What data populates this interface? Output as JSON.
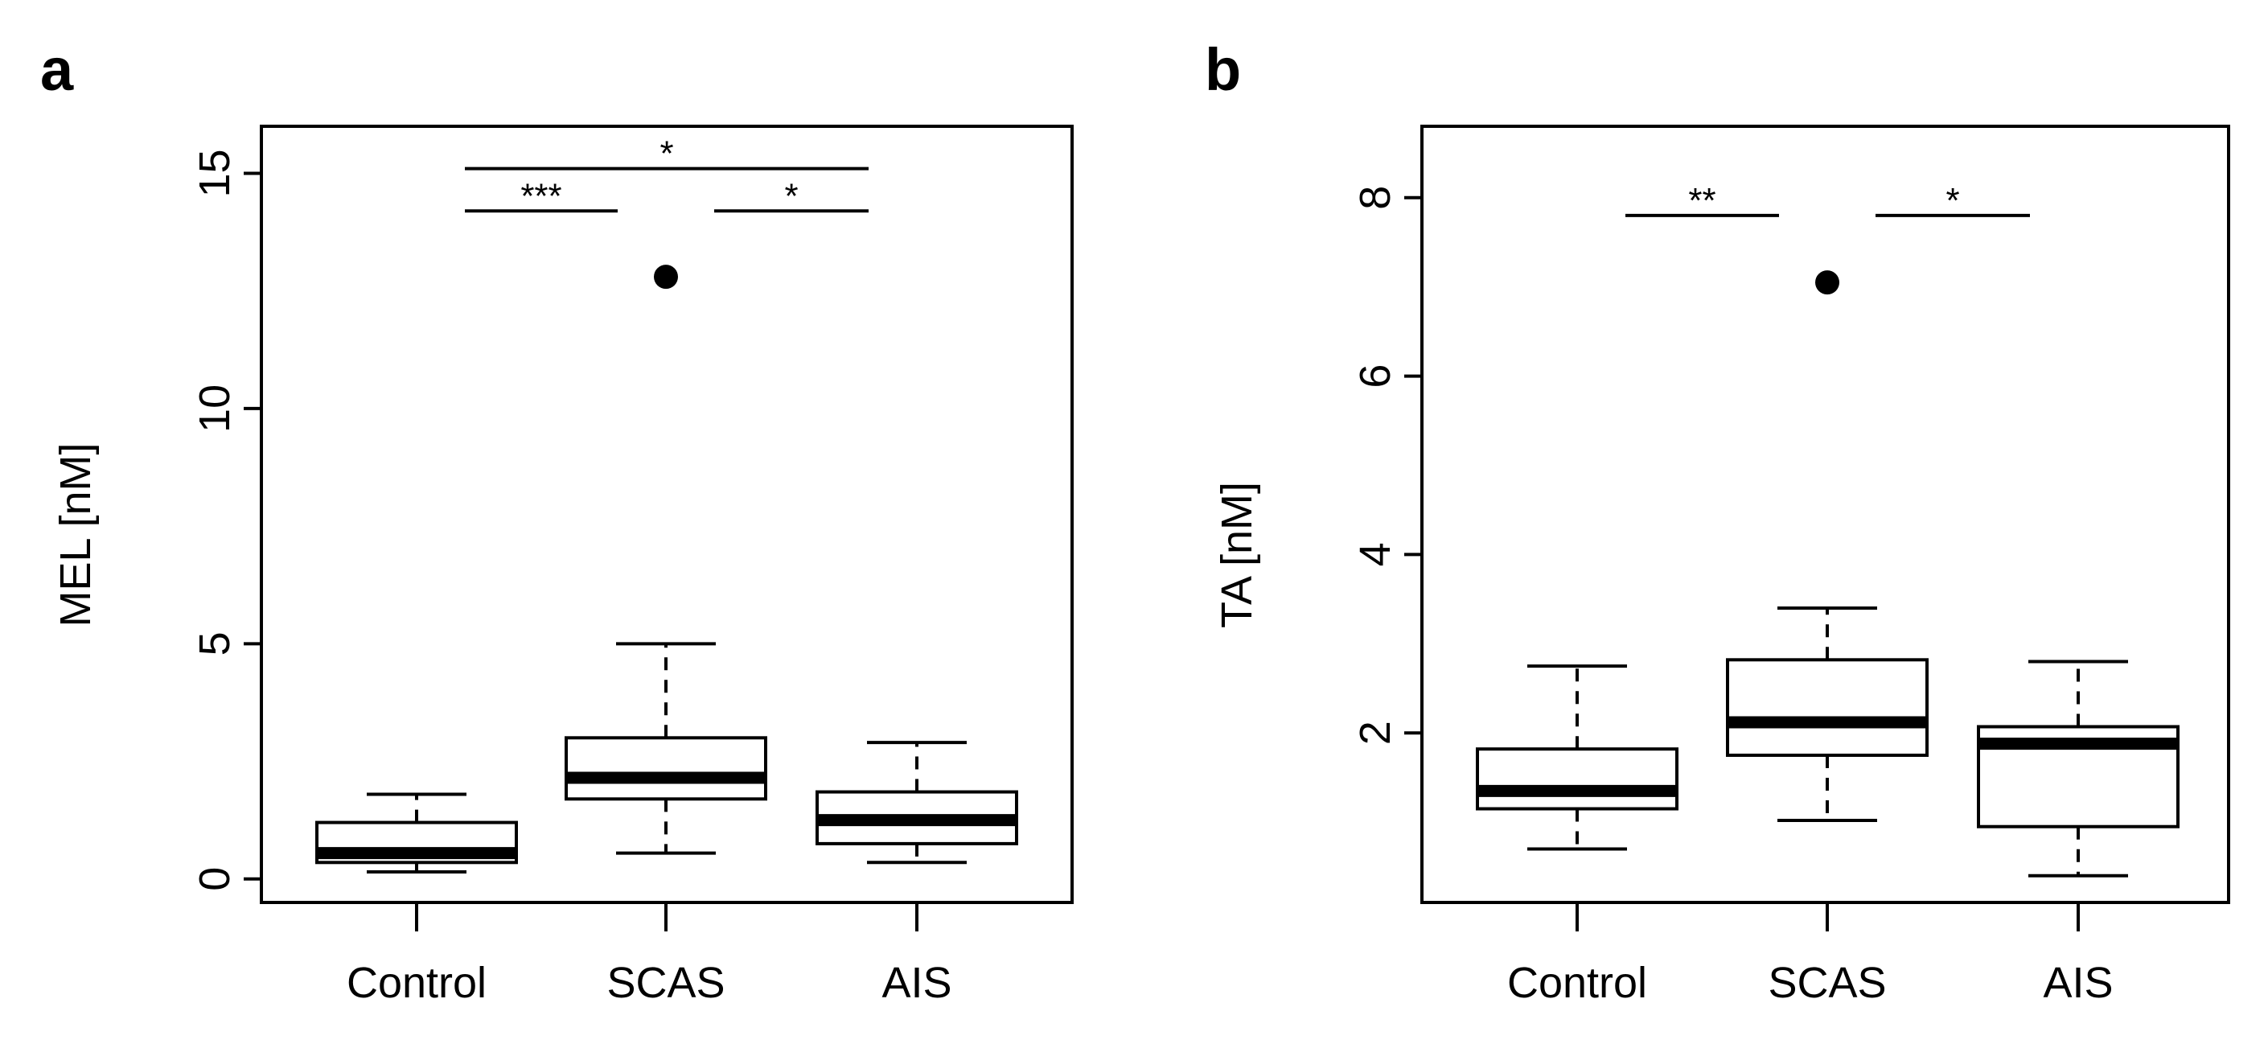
{
  "chart_data": [
    {
      "type": "boxplot",
      "panel_label": "a",
      "ylabel": "MEL [nM]",
      "ylim": [
        -0.5,
        16.0
      ],
      "yticks": [
        0,
        5,
        10,
        15
      ],
      "ytick_labels": [
        "0",
        "5",
        "10",
        "15"
      ],
      "categories": [
        "Control",
        "SCAS",
        "AIS"
      ],
      "boxes": [
        {
          "category": "Control",
          "whisker_low": 0.15,
          "q1": 0.35,
          "median": 0.55,
          "q3": 1.2,
          "whisker_high": 1.8,
          "outliers": []
        },
        {
          "category": "SCAS",
          "whisker_low": 0.55,
          "q1": 1.7,
          "median": 2.15,
          "q3": 3.0,
          "whisker_high": 5.0,
          "outliers": [
            12.8
          ]
        },
        {
          "category": "AIS",
          "whisker_low": 0.35,
          "q1": 0.75,
          "median": 1.25,
          "q3": 1.85,
          "whisker_high": 2.9,
          "outliers": []
        }
      ],
      "significance": [
        {
          "from": "SCAS",
          "to": "AIS",
          "label": "*",
          "y": 15.1,
          "from_edge": "left-gap"
        },
        {
          "from": "Control",
          "to": "SCAS",
          "label": "***",
          "y": 14.2
        },
        {
          "from": "SCAS",
          "to": "AIS",
          "label": "*",
          "y": 14.2
        }
      ]
    },
    {
      "type": "boxplot",
      "panel_label": "b",
      "ylabel": "TA [nM]",
      "ylim": [
        0.1,
        8.8
      ],
      "yticks": [
        2,
        4,
        6,
        8
      ],
      "ytick_labels": [
        "2",
        "4",
        "6",
        "8"
      ],
      "categories": [
        "Control",
        "SCAS",
        "AIS"
      ],
      "boxes": [
        {
          "category": "Control",
          "whisker_low": 0.7,
          "q1": 1.15,
          "median": 1.35,
          "q3": 1.82,
          "whisker_high": 2.75,
          "outliers": []
        },
        {
          "category": "SCAS",
          "whisker_low": 1.02,
          "q1": 1.75,
          "median": 2.12,
          "q3": 2.82,
          "whisker_high": 3.4,
          "outliers": [
            7.05
          ]
        },
        {
          "category": "AIS",
          "whisker_low": 0.4,
          "q1": 0.95,
          "median": 1.88,
          "q3": 2.07,
          "whisker_high": 2.8,
          "outliers": []
        }
      ],
      "significance": [
        {
          "from": "Control",
          "to": "SCAS",
          "label": "**",
          "y": 7.8
        },
        {
          "from": "SCAS",
          "to": "AIS",
          "label": "*",
          "y": 7.8
        }
      ]
    }
  ]
}
